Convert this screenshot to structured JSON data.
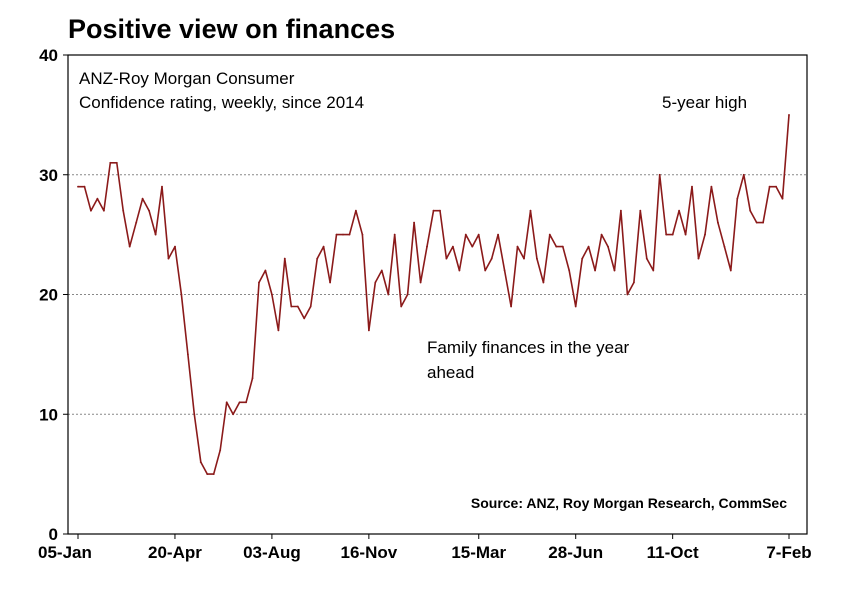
{
  "chart_data": {
    "type": "line",
    "title": "Positive view on finances",
    "subtitle_lines": [
      "ANZ-Roy Morgan Consumer",
      "Confidence rating, weekly, since 2014"
    ],
    "series": [
      {
        "name": "Family finances in the year ahead",
        "color": "#8b1a1a",
        "values": [
          29,
          29,
          27,
          28,
          27,
          31,
          31,
          27,
          24,
          26,
          28,
          27,
          25,
          29,
          23,
          24,
          20,
          15,
          10,
          6,
          5,
          5,
          7,
          11,
          10,
          11,
          11,
          13,
          21,
          22,
          20,
          17,
          23,
          19,
          19,
          18,
          19,
          23,
          24,
          21,
          25,
          25,
          25,
          27,
          25,
          17,
          21,
          22,
          20,
          25,
          19,
          20,
          26,
          21,
          24,
          27,
          27,
          23,
          24,
          22,
          25,
          24,
          25,
          22,
          23,
          25,
          22,
          19,
          24,
          23,
          27,
          23,
          21,
          25,
          24,
          24,
          22,
          19,
          23,
          24,
          22,
          25,
          24,
          22,
          27,
          20,
          21,
          27,
          23,
          22,
          30,
          25,
          25,
          27,
          25,
          29,
          23,
          25,
          29,
          26,
          24,
          22,
          28,
          30,
          27,
          26,
          26,
          29,
          29,
          28,
          35
        ]
      }
    ],
    "x_tick_labels": [
      "05-Jan",
      "20-Apr",
      "03-Aug",
      "16-Nov",
      "15-Mar",
      "28-Jun",
      "11-Oct",
      "7-Feb"
    ],
    "x_tick_week_index": [
      0,
      15,
      30,
      45,
      62,
      77,
      92,
      110
    ],
    "y_ticks": [
      0,
      10,
      20,
      30,
      40
    ],
    "ylim": [
      0,
      40
    ],
    "grid": "horizontal dotted",
    "annotations": {
      "peak_label": "5-year high",
      "series_label_lines": [
        "Family finances in the year",
        "ahead"
      ],
      "source": "Source: ANZ, Roy Morgan Research, CommSec"
    }
  }
}
